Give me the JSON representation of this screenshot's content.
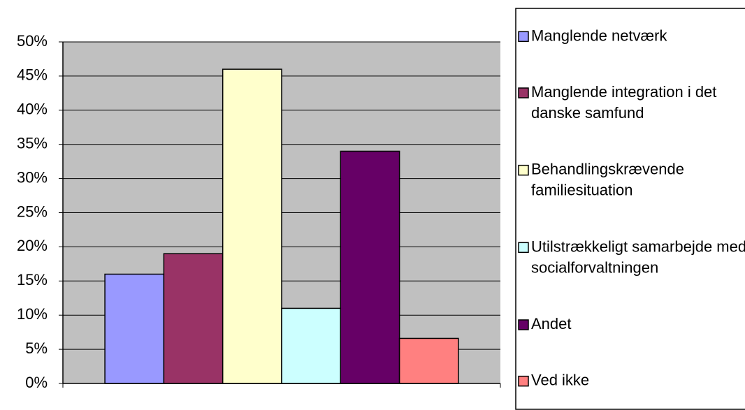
{
  "chart_data": {
    "type": "bar",
    "categories": [
      null
    ],
    "series": [
      {
        "name": "Manglende netværk",
        "color": "#9999ff",
        "values": [
          16
        ]
      },
      {
        "name": "Manglende integration i det danske samfund",
        "color": "#993366",
        "values": [
          19
        ]
      },
      {
        "name": "Behandlingskrævende familiesituation",
        "color": "#ffffcc",
        "values": [
          46
        ]
      },
      {
        "name": "Utilstrækkeligt samarbejde med socialforvaltningen",
        "color": "#ccffff",
        "values": [
          11
        ]
      },
      {
        "name": "Andet",
        "color": "#660066",
        "values": [
          34
        ]
      },
      {
        "name": "Ved ikke",
        "color": "#ff8080",
        "values": [
          6.6
        ]
      }
    ],
    "ylim": [
      0,
      50
    ],
    "yticks": [
      {
        "value": 0,
        "label": "0%"
      },
      {
        "value": 5,
        "label": "5%"
      },
      {
        "value": 10,
        "label": "10%"
      },
      {
        "value": 15,
        "label": "15%"
      },
      {
        "value": 20,
        "label": "20%"
      },
      {
        "value": 25,
        "label": "25%"
      },
      {
        "value": 30,
        "label": "30%"
      },
      {
        "value": 35,
        "label": "35%"
      },
      {
        "value": 40,
        "label": "40%"
      },
      {
        "value": 45,
        "label": "45%"
      },
      {
        "value": 50,
        "label": "50%"
      }
    ],
    "grid": true,
    "legend": "right"
  }
}
